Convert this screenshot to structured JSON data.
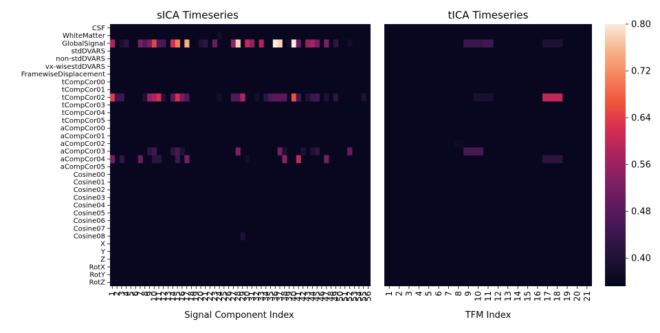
{
  "chart_data": [
    {
      "type": "heatmap",
      "title": "sICA Timeseries",
      "xlabel": "Signal Component Index",
      "ylabel": "",
      "x_count": 56,
      "x_tick_labels": [
        "1",
        "2",
        "3",
        "4",
        "5",
        "6",
        "7",
        "8",
        "9",
        "10",
        "11",
        "12",
        "13",
        "14",
        "15",
        "16",
        "17",
        "18",
        "19",
        "20",
        "21",
        "22",
        "23",
        "24",
        "25",
        "26",
        "27",
        "28",
        "29",
        "30",
        "31",
        "32",
        "33",
        "34",
        "35",
        "36",
        "37",
        "38",
        "39",
        "40",
        "41",
        "42",
        "43",
        "44",
        "45",
        "46",
        "47",
        "48",
        "49",
        "50",
        "51",
        "52",
        "53",
        "54",
        "55",
        "56"
      ],
      "rows": [
        "CSF",
        "WhiteMatter",
        "GlobalSignal",
        "stdDVARS",
        "non-stdDVARS",
        "vx-wisestdDVARS",
        "FramewiseDisplacement",
        "tCompCor00",
        "tCompCor01",
        "tCompCor02",
        "tCompCor03",
        "tCompCor04",
        "tCompCor05",
        "aCompCor00",
        "aCompCor01",
        "aCompCor02",
        "aCompCor03",
        "aCompCor04",
        "aCompCor05",
        "Cosine00",
        "Cosine01",
        "Cosine02",
        "Cosine03",
        "Cosine04",
        "Cosine05",
        "Cosine06",
        "Cosine07",
        "Cosine08",
        "X",
        "Y",
        "Z",
        "RotX",
        "RotY",
        "RotZ"
      ],
      "baseline": 0.36,
      "cells": {
        "WhiteMatter": [
          [
            24,
            0.38
          ]
        ],
        "GlobalSignal": [
          [
            1,
            0.58
          ],
          [
            3,
            0.39
          ],
          [
            4,
            0.42
          ],
          [
            7,
            0.52
          ],
          [
            8,
            0.48
          ],
          [
            9,
            0.52
          ],
          [
            10,
            0.65
          ],
          [
            11,
            0.47
          ],
          [
            12,
            0.46
          ],
          [
            14,
            0.62
          ],
          [
            15,
            0.7
          ],
          [
            17,
            0.75
          ],
          [
            20,
            0.4
          ],
          [
            21,
            0.42
          ],
          [
            23,
            0.5
          ],
          [
            27,
            0.55
          ],
          [
            28,
            0.78
          ],
          [
            30,
            0.6
          ],
          [
            31,
            0.55
          ],
          [
            33,
            0.58
          ],
          [
            36,
            0.8
          ],
          [
            37,
            0.78
          ],
          [
            39,
            0.38
          ],
          [
            40,
            0.8
          ],
          [
            41,
            0.5
          ],
          [
            43,
            0.55
          ],
          [
            44,
            0.57
          ],
          [
            45,
            0.52
          ],
          [
            47,
            0.53
          ],
          [
            49,
            0.42
          ],
          [
            52,
            0.38
          ]
        ],
        "tCompCor02": [
          [
            1,
            0.64
          ],
          [
            2,
            0.45
          ],
          [
            3,
            0.45
          ],
          [
            8,
            0.4
          ],
          [
            9,
            0.56
          ],
          [
            10,
            0.58
          ],
          [
            11,
            0.62
          ],
          [
            12,
            0.4
          ],
          [
            14,
            0.48
          ],
          [
            15,
            0.62
          ],
          [
            16,
            0.52
          ],
          [
            17,
            0.47
          ],
          [
            24,
            0.38
          ],
          [
            27,
            0.47
          ],
          [
            28,
            0.47
          ],
          [
            29,
            0.58
          ],
          [
            32,
            0.38
          ],
          [
            34,
            0.42
          ],
          [
            35,
            0.47
          ],
          [
            36,
            0.48
          ],
          [
            37,
            0.48
          ],
          [
            38,
            0.48
          ],
          [
            40,
            0.66
          ],
          [
            41,
            0.45
          ],
          [
            43,
            0.4
          ],
          [
            44,
            0.44
          ],
          [
            45,
            0.45
          ],
          [
            47,
            0.4
          ],
          [
            49,
            0.42
          ],
          [
            55,
            0.4
          ]
        ],
        "aCompCor03": [
          [
            9,
            0.42
          ],
          [
            10,
            0.45
          ],
          [
            14,
            0.42
          ],
          [
            15,
            0.46
          ],
          [
            16,
            0.4
          ],
          [
            28,
            0.53
          ],
          [
            37,
            0.52
          ],
          [
            38,
            0.4
          ],
          [
            42,
            0.4
          ],
          [
            44,
            0.4
          ],
          [
            45,
            0.42
          ],
          [
            52,
            0.5
          ]
        ],
        "aCompCor04": [
          [
            1,
            0.52
          ],
          [
            3,
            0.43
          ],
          [
            7,
            0.5
          ],
          [
            10,
            0.42
          ],
          [
            11,
            0.42
          ],
          [
            15,
            0.45
          ],
          [
            17,
            0.52
          ],
          [
            30,
            0.38
          ],
          [
            38,
            0.54
          ],
          [
            41,
            0.6
          ],
          [
            47,
            0.52
          ]
        ],
        "Cosine08": [
          [
            29,
            0.4
          ]
        ]
      }
    },
    {
      "type": "heatmap",
      "title": "tICA Timeseries",
      "xlabel": "TFM Index",
      "ylabel": "",
      "x_count": 21,
      "x_tick_labels": [
        "1",
        "2",
        "3",
        "4",
        "5",
        "6",
        "7",
        "8",
        "9",
        "10",
        "11",
        "12",
        "13",
        "14",
        "15",
        "16",
        "17",
        "18",
        "19",
        "20",
        "21"
      ],
      "rows": [
        "CSF",
        "WhiteMatter",
        "GlobalSignal",
        "stdDVARS",
        "non-stdDVARS",
        "vx-wisestdDVARS",
        "FramewiseDisplacement",
        "tCompCor00",
        "tCompCor01",
        "tCompCor02",
        "tCompCor03",
        "tCompCor04",
        "tCompCor05",
        "aCompCor00",
        "aCompCor01",
        "aCompCor02",
        "aCompCor03",
        "aCompCor04",
        "aCompCor05",
        "Cosine00",
        "Cosine01",
        "Cosine02",
        "Cosine03",
        "Cosine04",
        "Cosine05",
        "Cosine06",
        "Cosine07",
        "Cosine08",
        "X",
        "Y",
        "Z",
        "RotX",
        "RotY",
        "RotZ"
      ],
      "baseline": 0.36,
      "cells": {
        "GlobalSignal": [
          [
            9,
            0.44
          ],
          [
            10,
            0.44
          ],
          [
            11,
            0.45
          ],
          [
            17,
            0.4
          ],
          [
            18,
            0.4
          ]
        ],
        "tCompCor02": [
          [
            10,
            0.39
          ],
          [
            11,
            0.39
          ],
          [
            17,
            0.6
          ],
          [
            18,
            0.6
          ]
        ],
        "aCompCor02": [
          [
            8,
            0.37
          ]
        ],
        "aCompCor03": [
          [
            9,
            0.46
          ],
          [
            10,
            0.46
          ]
        ],
        "aCompCor04": [
          [
            17,
            0.42
          ],
          [
            18,
            0.42
          ]
        ]
      }
    }
  ],
  "colorbar": {
    "range": [
      0.352,
      0.8
    ],
    "tick_values": [
      0.4,
      0.48,
      0.56,
      0.64,
      0.72,
      0.8
    ],
    "tick_labels": [
      "0.40",
      "0.48",
      "0.56",
      "0.64",
      "0.72",
      "0.80"
    ]
  },
  "colors": {
    "background": "#ffffff",
    "axis": "#000000"
  }
}
